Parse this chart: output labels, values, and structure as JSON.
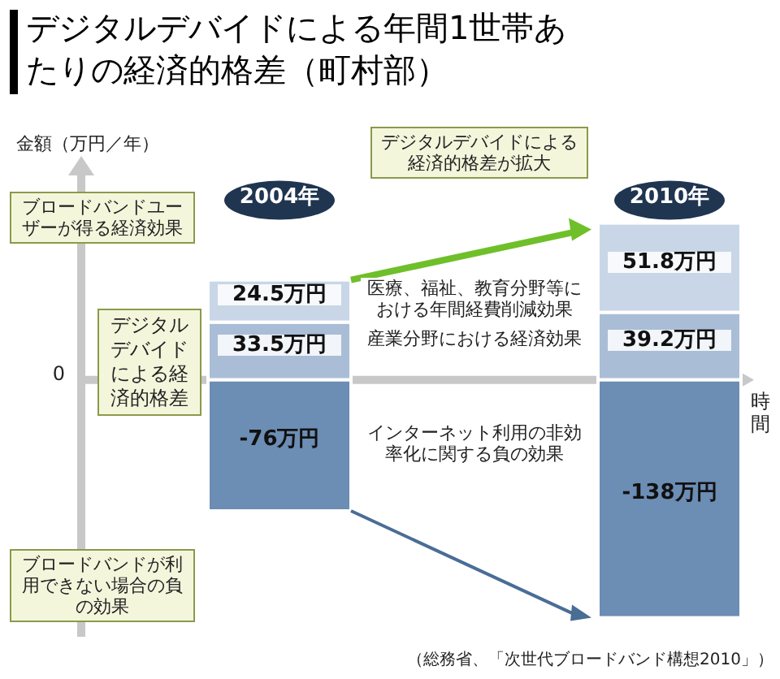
{
  "chart_data": {
    "type": "bar",
    "stacked": true,
    "title": "デジタルデバイドによる年間1世帯あたりの経済的格差（町村部）",
    "ylabel": "金額（万円／年）",
    "xlabel": "時間",
    "categories": [
      "2004年",
      "2010年"
    ],
    "series": [
      {
        "name": "産業分野における経済効果",
        "color": "#a9bdd6",
        "values": [
          33.5,
          39.2
        ],
        "value_labels": [
          "33.5万円",
          "39.2万円"
        ]
      },
      {
        "name": "医療、福祉、教育分野等における年間経費削減効果",
        "color": "#c8d6e7",
        "values": [
          24.5,
          51.8
        ],
        "value_labels": [
          "24.5万円",
          "51.8万円"
        ]
      },
      {
        "name": "インターネット利用の非効率化に関する負の効果",
        "color": "#6c8db4",
        "values": [
          -76,
          -138
        ],
        "value_labels": [
          "-76万円",
          "-138万円"
        ]
      }
    ],
    "annotations": [
      "0",
      "ブロードバンドユーザーが得る経済効果",
      "デジタルデバイドによる経済的格差",
      "ブロードバンドが利用できない場合の負の効果",
      "デジタルデバイドによる経済的格差が拡大",
      "（総務省、「次世代ブロードバンド構想2010」）"
    ]
  }
}
